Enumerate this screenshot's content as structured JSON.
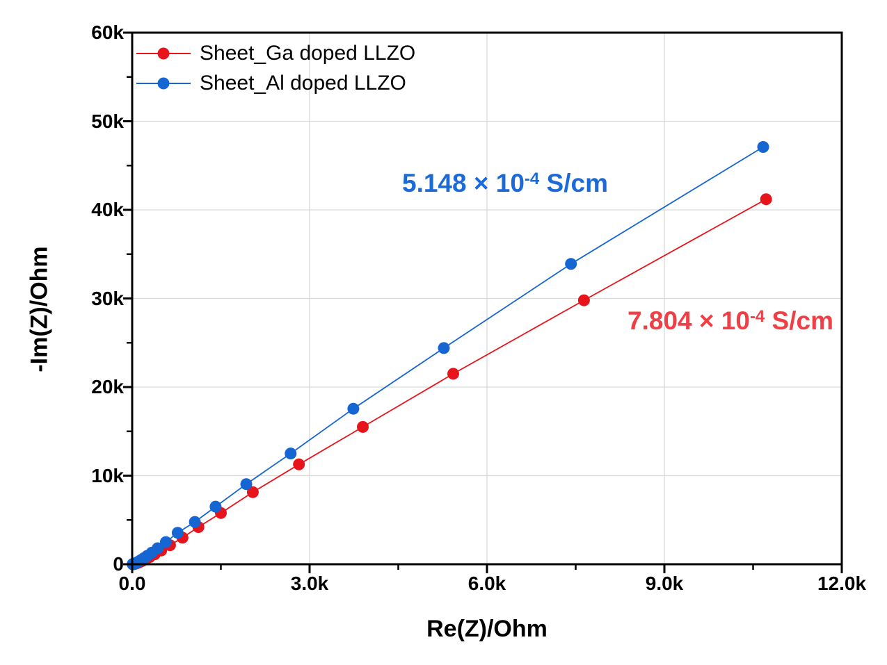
{
  "chart_data": {
    "type": "scatter",
    "title": "",
    "xlabel": "Re(Z)/Ohm",
    "ylabel": "-Im(Z)/Ohm",
    "xlim": [
      0,
      12000
    ],
    "ylim": [
      0,
      60000
    ],
    "x_major_step": 3000,
    "x_minor_step": 1500,
    "y_major_step": 10000,
    "y_minor_step": 5000,
    "x_tick_labels": [
      "0.0",
      "3.0k",
      "6.0k",
      "9.0k",
      "12.0k"
    ],
    "y_tick_labels": [
      "0",
      "10k",
      "20k",
      "30k",
      "40k",
      "50k",
      "60k"
    ],
    "grid": true,
    "grid_color": "#d9d9d9",
    "legend_position": "top-left-inside",
    "series": [
      {
        "label": "Sheet_Ga doped LLZO",
        "color": "#e8141c",
        "marker": "circle",
        "x": [
          10720,
          7640,
          5430,
          3900,
          2820,
          2040,
          1500,
          1120,
          850,
          640,
          490,
          380,
          295,
          235,
          185,
          150,
          120,
          98,
          80,
          66,
          54,
          45,
          37,
          30,
          25,
          20,
          17,
          14,
          11,
          9
        ],
        "y": [
          41200,
          29800,
          21500,
          15500,
          11270,
          8130,
          5780,
          4200,
          3000,
          2150,
          1550,
          1120,
          810,
          590,
          430,
          310,
          225,
          165,
          120,
          88,
          64,
          47,
          34,
          25,
          18,
          13,
          10,
          7,
          5,
          3
        ]
      },
      {
        "label": "Sheet_Al doped LLZO",
        "color": "#1565d2",
        "marker": "circle",
        "x": [
          10670,
          7420,
          5270,
          3740,
          2680,
          1930,
          1410,
          1060,
          770,
          570,
          430,
          330,
          255,
          200,
          160,
          130,
          105,
          85,
          70,
          58,
          48,
          40,
          33,
          27,
          22,
          18,
          15,
          12,
          10,
          8
        ],
        "y": [
          47100,
          33900,
          24400,
          17550,
          12500,
          9040,
          6500,
          4780,
          3550,
          2500,
          1800,
          1300,
          950,
          700,
          520,
          390,
          290,
          215,
          160,
          120,
          90,
          65,
          48,
          35,
          26,
          19,
          14,
          10,
          7,
          5
        ]
      }
    ],
    "annotations": [
      {
        "prefix": "5.148 × 10",
        "exponent": "-4",
        "suffix": " S/cm",
        "color": "#1b6ad8"
      },
      {
        "prefix": "7.804 × 10",
        "exponent": "-4",
        "suffix": " S/cm",
        "color": "#ee4046"
      }
    ]
  }
}
